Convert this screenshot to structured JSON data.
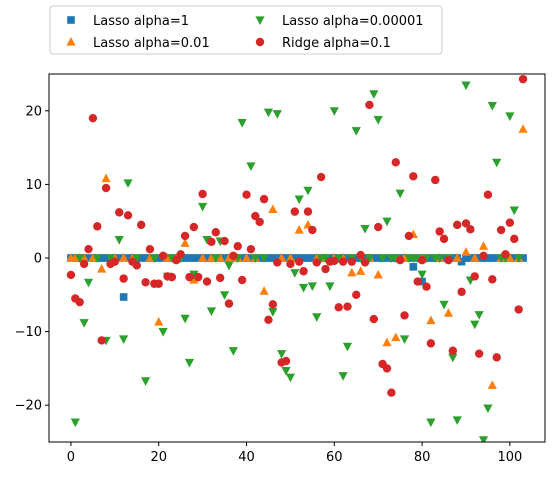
{
  "chart_data": {
    "type": "scatter",
    "xlim": [
      -5,
      108
    ],
    "ylim": [
      -25,
      25
    ],
    "xticks": [
      0,
      20,
      40,
      60,
      80,
      100
    ],
    "yticks": [
      -20,
      -10,
      0,
      10,
      20
    ],
    "grid": false,
    "legend_placement": "top, above plot, 2 columns",
    "series": [
      {
        "name": "Lasso alpha=1",
        "marker": "square",
        "color": "#1f77b4",
        "x": [
          0,
          1,
          2,
          3,
          4,
          5,
          6,
          7,
          8,
          9,
          10,
          11,
          12,
          13,
          14,
          15,
          16,
          17,
          18,
          19,
          20,
          21,
          22,
          23,
          24,
          25,
          26,
          27,
          28,
          29,
          30,
          31,
          32,
          33,
          34,
          35,
          36,
          37,
          38,
          39,
          40,
          41,
          42,
          43,
          44,
          45,
          46,
          47,
          48,
          49,
          50,
          51,
          52,
          53,
          54,
          55,
          56,
          57,
          58,
          59,
          60,
          61,
          62,
          63,
          64,
          65,
          66,
          67,
          68,
          69,
          70,
          71,
          72,
          73,
          74,
          75,
          76,
          77,
          78,
          79,
          80,
          81,
          82,
          83,
          84,
          85,
          86,
          87,
          88,
          89,
          90,
          91,
          92,
          93,
          94,
          95,
          96,
          97,
          98,
          99,
          100,
          101,
          102,
          103
        ],
        "y": [
          0,
          0,
          0,
          0,
          0,
          0,
          0,
          0,
          0,
          0,
          0,
          0,
          -5.3,
          0,
          0,
          0,
          0,
          0,
          0,
          0,
          0,
          0,
          0,
          0,
          0,
          0,
          0,
          0,
          0,
          0,
          0,
          0,
          0,
          0,
          0,
          0,
          0,
          0,
          0,
          0,
          0,
          0,
          0,
          0,
          0,
          0,
          0,
          0,
          0,
          0,
          0,
          0,
          0,
          0,
          0,
          0,
          0,
          0,
          0,
          0,
          0,
          0,
          0,
          0,
          0,
          0,
          0,
          0,
          0,
          0,
          0,
          0,
          0,
          0,
          0,
          0,
          0,
          0,
          -1.2,
          0,
          -3.2,
          0,
          0,
          0,
          0,
          0,
          0,
          0,
          0,
          -0.5,
          0,
          0,
          0,
          0,
          0,
          0,
          0,
          0,
          0,
          0,
          0,
          0,
          0,
          0
        ]
      },
      {
        "name": "Lasso alpha=0.01",
        "marker": "triangle-up",
        "color": "#ff7f0e",
        "x": [
          0,
          1,
          2,
          3,
          5,
          7,
          8,
          10,
          12,
          14,
          18,
          20,
          22,
          24,
          26,
          28,
          30,
          32,
          34,
          36,
          38,
          40,
          42,
          44,
          46,
          48,
          50,
          52,
          54,
          56,
          58,
          60,
          62,
          64,
          66,
          68,
          70,
          72,
          74,
          76,
          78,
          80,
          82,
          84,
          86,
          88,
          90,
          92,
          94,
          96,
          98,
          100,
          102,
          103
        ],
        "y": [
          0,
          0,
          0,
          0,
          0,
          -1.5,
          10.8,
          0,
          0,
          0,
          0,
          -8.7,
          0,
          0,
          2.0,
          -3.0,
          0,
          0,
          0,
          0,
          0,
          0,
          0,
          -4.5,
          6.6,
          0,
          0,
          3.8,
          4.5,
          0,
          0,
          0,
          0,
          -2.0,
          -1.8,
          0,
          -2.3,
          -11.5,
          -10.8,
          0,
          3.2,
          0,
          -8.5,
          0,
          -7.5,
          0,
          0.8,
          0,
          1.6,
          -17.3,
          0,
          0,
          0,
          17.5
        ]
      },
      {
        "name": "Lasso alpha=0.00001",
        "marker": "triangle-down",
        "color": "#2ca02c",
        "x": [
          1,
          2,
          3,
          4,
          6,
          8,
          9,
          11,
          12,
          13,
          15,
          17,
          19,
          21,
          22,
          23,
          25,
          26,
          27,
          28,
          30,
          31,
          32,
          33,
          34,
          35,
          36,
          37,
          38,
          39,
          41,
          42,
          44,
          45,
          46,
          47,
          48,
          49,
          50,
          51,
          52,
          53,
          54,
          55,
          56,
          57,
          58,
          59,
          60,
          61,
          62,
          63,
          64,
          65,
          66,
          67,
          68,
          69,
          70,
          71,
          72,
          73,
          74,
          75,
          76,
          77,
          78,
          79,
          80,
          81,
          82,
          83,
          84,
          85,
          86,
          87,
          88,
          90,
          91,
          92,
          93,
          94,
          95,
          96,
          97,
          98,
          99,
          100,
          101,
          102
        ],
        "y": [
          -22.3,
          0,
          -8.8,
          -3.3,
          0,
          -11.2,
          0,
          2.5,
          -11.0,
          10.2,
          0,
          -16.7,
          0,
          -10.0,
          -2.5,
          0,
          0,
          -8.2,
          -14.2,
          -2.2,
          7.0,
          2.5,
          -7.2,
          0,
          2.3,
          -5.0,
          -1.0,
          -12.6,
          0,
          18.4,
          12.5,
          0,
          0,
          19.8,
          -7.3,
          19.6,
          -13.0,
          -15.3,
          -16.2,
          -2.0,
          8.0,
          -4.0,
          9.2,
          -3.8,
          -8.0,
          0,
          0,
          -3.8,
          20.0,
          0,
          -16.0,
          -12.0,
          0,
          17.3,
          0,
          4.0,
          0,
          22.3,
          18.8,
          0,
          5.0,
          0,
          0,
          8.8,
          -11.0,
          0,
          0,
          0,
          -2.2,
          0,
          -22.3,
          0,
          0,
          -6.3,
          0,
          -13.5,
          -22.0,
          23.5,
          -3.0,
          -9.0,
          -7.7,
          -24.7,
          -20.4,
          20.7,
          13.0,
          0,
          0,
          19.3,
          6.5,
          0
        ]
      },
      {
        "name": "Ridge alpha=0.1",
        "marker": "circle",
        "color": "#d62728",
        "x": [
          0,
          1,
          2,
          3,
          4,
          5,
          6,
          7,
          8,
          9,
          10,
          11,
          12,
          13,
          14,
          15,
          16,
          17,
          18,
          19,
          20,
          21,
          22,
          23,
          24,
          25,
          26,
          27,
          28,
          29,
          30,
          31,
          32,
          33,
          34,
          35,
          36,
          37,
          38,
          39,
          40,
          41,
          42,
          43,
          44,
          45,
          46,
          47,
          48,
          49,
          50,
          51,
          52,
          53,
          54,
          55,
          56,
          57,
          58,
          59,
          60,
          61,
          62,
          63,
          64,
          65,
          66,
          67,
          68,
          69,
          70,
          71,
          72,
          73,
          74,
          75,
          76,
          77,
          78,
          79,
          80,
          81,
          82,
          83,
          84,
          85,
          86,
          87,
          88,
          89,
          90,
          91,
          92,
          93,
          94,
          95,
          96,
          97,
          98,
          99,
          100,
          101,
          102,
          103
        ],
        "y": [
          -2.3,
          -5.5,
          -6.0,
          -0.8,
          1.2,
          19.0,
          4.3,
          -11.2,
          9.5,
          -0.8,
          -0.5,
          6.2,
          -2.8,
          5.8,
          -0.5,
          -1.0,
          4.5,
          -3.3,
          1.2,
          -3.5,
          -3.5,
          0.3,
          -2.5,
          -2.6,
          -0.3,
          0.5,
          3.0,
          -2.6,
          4.2,
          -2.6,
          8.7,
          -3.2,
          2.2,
          3.5,
          -2.7,
          2.3,
          -6.2,
          0.3,
          1.6,
          -3.0,
          8.6,
          1.2,
          5.7,
          4.9,
          8.0,
          -8.4,
          -6.3,
          -0.6,
          -14.2,
          -14.0,
          -0.8,
          6.3,
          -0.5,
          -1.8,
          6.3,
          3.8,
          -0.6,
          11.0,
          -1.5,
          -0.5,
          -0.4,
          -6.7,
          -0.5,
          -6.6,
          -0.5,
          -5.0,
          0.4,
          -0.6,
          20.8,
          -8.3,
          4.2,
          -14.4,
          -15.0,
          -18.3,
          13.0,
          -0.3,
          -7.8,
          3.0,
          11.1,
          -3.2,
          -0.3,
          -3.9,
          -11.6,
          10.6,
          3.6,
          2.6,
          -0.3,
          -12.6,
          4.5,
          -4.6,
          4.7,
          3.9,
          -2.5,
          -13.0,
          0.3,
          8.6,
          -2.9,
          -13.5,
          3.8,
          0.5,
          4.8,
          2.6,
          -7.0,
          24.3
        ]
      }
    ]
  }
}
